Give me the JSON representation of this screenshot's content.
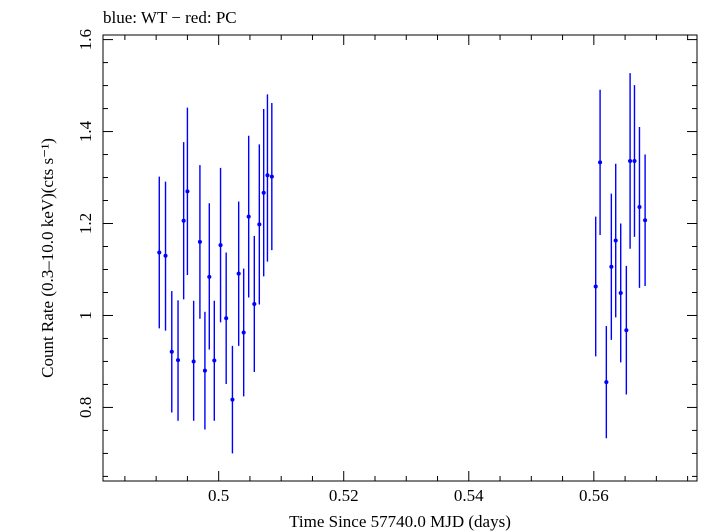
{
  "chart_data": {
    "type": "scatter",
    "title": "blue: WT − red: PC",
    "xlabel": "Time Since 57740.0 MJD (days)",
    "ylabel": "Count Rate (0.3–10.0 keV)(cts s⁻¹)",
    "xlim": [
      0.4815,
      0.5765
    ],
    "ylim": [
      0.64,
      1.61
    ],
    "xticks": [
      {
        "value": 0.5,
        "label": "0.5"
      },
      {
        "value": 0.52,
        "label": "0.52"
      },
      {
        "value": 0.54,
        "label": "0.54"
      },
      {
        "value": 0.56,
        "label": "0.56"
      }
    ],
    "yticks": [
      {
        "value": 0.8,
        "label": "0.8"
      },
      {
        "value": 1.0,
        "label": "1"
      },
      {
        "value": 1.2,
        "label": "1.2"
      },
      {
        "value": 1.4,
        "label": "1.4"
      },
      {
        "value": 1.6,
        "label": "1.6"
      }
    ],
    "grid": false,
    "series": [
      {
        "color": "#0000ff",
        "x_error": 0.0003,
        "points": [
          {
            "x": 0.4905,
            "y": 1.137,
            "lo": 0.972,
            "hi": 1.302
          },
          {
            "x": 0.4915,
            "y": 1.13,
            "lo": 0.967,
            "hi": 1.291
          },
          {
            "x": 0.4925,
            "y": 0.921,
            "lo": 0.789,
            "hi": 1.053
          },
          {
            "x": 0.4935,
            "y": 0.903,
            "lo": 0.771,
            "hi": 1.033
          },
          {
            "x": 0.4944,
            "y": 1.206,
            "lo": 1.035,
            "hi": 1.377
          },
          {
            "x": 0.495,
            "y": 1.27,
            "lo": 1.088,
            "hi": 1.452
          },
          {
            "x": 0.496,
            "y": 0.9,
            "lo": 0.771,
            "hi": 1.032
          },
          {
            "x": 0.497,
            "y": 1.16,
            "lo": 0.993,
            "hi": 1.327
          },
          {
            "x": 0.4978,
            "y": 0.88,
            "lo": 0.752,
            "hi": 1.008
          },
          {
            "x": 0.4985,
            "y": 1.084,
            "lo": 0.926,
            "hi": 1.244
          },
          {
            "x": 0.4993,
            "y": 0.902,
            "lo": 0.771,
            "hi": 1.032
          },
          {
            "x": 0.5003,
            "y": 1.153,
            "lo": 0.985,
            "hi": 1.321
          },
          {
            "x": 0.5012,
            "y": 0.994,
            "lo": 0.851,
            "hi": 1.137
          },
          {
            "x": 0.5022,
            "y": 0.817,
            "lo": 0.7,
            "hi": 0.934
          },
          {
            "x": 0.5032,
            "y": 1.091,
            "lo": 0.934,
            "hi": 1.248
          },
          {
            "x": 0.504,
            "y": 0.963,
            "lo": 0.824,
            "hi": 1.102
          },
          {
            "x": 0.5048,
            "y": 1.215,
            "lo": 1.039,
            "hi": 1.391
          },
          {
            "x": 0.5057,
            "y": 1.025,
            "lo": 0.877,
            "hi": 1.173
          },
          {
            "x": 0.5065,
            "y": 1.198,
            "lo": 1.024,
            "hi": 1.372
          },
          {
            "x": 0.5072,
            "y": 1.267,
            "lo": 1.085,
            "hi": 1.449
          },
          {
            "x": 0.5078,
            "y": 1.305,
            "lo": 1.117,
            "hi": 1.481
          },
          {
            "x": 0.5085,
            "y": 1.302,
            "lo": 1.142,
            "hi": 1.462
          },
          {
            "x": 0.5603,
            "y": 1.063,
            "lo": 0.911,
            "hi": 1.215
          },
          {
            "x": 0.561,
            "y": 1.333,
            "lo": 1.175,
            "hi": 1.491
          },
          {
            "x": 0.562,
            "y": 0.855,
            "lo": 0.733,
            "hi": 0.977
          },
          {
            "x": 0.5628,
            "y": 1.106,
            "lo": 0.947,
            "hi": 1.265
          },
          {
            "x": 0.5635,
            "y": 1.163,
            "lo": 0.996,
            "hi": 1.33
          },
          {
            "x": 0.5643,
            "y": 1.049,
            "lo": 0.898,
            "hi": 1.2
          },
          {
            "x": 0.5652,
            "y": 0.968,
            "lo": 0.828,
            "hi": 1.108
          },
          {
            "x": 0.5658,
            "y": 1.336,
            "lo": 1.145,
            "hi": 1.527
          },
          {
            "x": 0.5665,
            "y": 1.336,
            "lo": 1.171,
            "hi": 1.501
          },
          {
            "x": 0.5673,
            "y": 1.236,
            "lo": 1.06,
            "hi": 1.41
          },
          {
            "x": 0.5682,
            "y": 1.207,
            "lo": 1.064,
            "hi": 1.35
          }
        ]
      }
    ]
  }
}
